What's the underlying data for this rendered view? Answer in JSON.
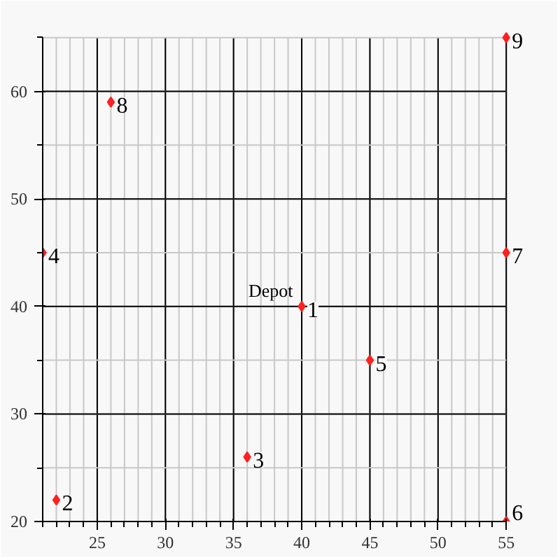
{
  "chart_data": {
    "type": "scatter",
    "x": [
      40,
      22,
      36,
      21,
      45,
      55,
      55,
      26,
      55
    ],
    "values": [
      40,
      22,
      26,
      45,
      35,
      20,
      45,
      59,
      65
    ],
    "color": "#ff2020",
    "marker": "diamond",
    "xlim": [
      21,
      55
    ],
    "ylim": [
      20,
      65
    ],
    "xticks": [
      25,
      30,
      35,
      40,
      45,
      50,
      55
    ],
    "yticks": [
      20,
      30,
      40,
      50,
      60
    ],
    "grid": true,
    "annotations": [
      {
        "text": "Depot",
        "x": 40,
        "y": 40
      },
      {
        "text": "1",
        "x": 40,
        "y": 40
      },
      {
        "text": "2",
        "x": 22,
        "y": 22
      },
      {
        "text": "3",
        "x": 36,
        "y": 26
      },
      {
        "text": "4",
        "x": 21,
        "y": 45
      },
      {
        "text": "5",
        "x": 45,
        "y": 35
      },
      {
        "text": "6",
        "x": 55,
        "y": 20
      },
      {
        "text": "7",
        "x": 55,
        "y": 45
      },
      {
        "text": "8",
        "x": 26,
        "y": 59
      },
      {
        "text": "9",
        "x": 55,
        "y": 65
      }
    ]
  }
}
